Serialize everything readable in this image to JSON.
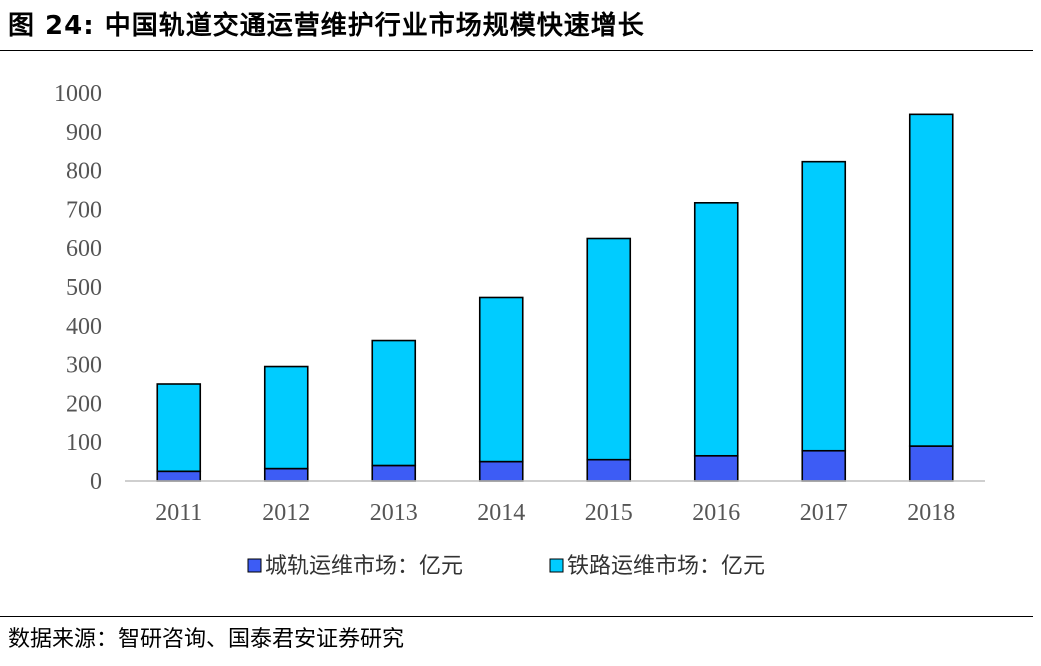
{
  "figure": {
    "label": "图 24:",
    "title": "中国轨道交通运营维护行业市场规模快速增长",
    "source": "数据来源：智研咨询、国泰君安证券研究"
  },
  "colors": {
    "series1": "#3d5cf5",
    "series2": "#00ccff",
    "bar_stroke": "#000000",
    "axis": "#bfbfbf"
  },
  "chart_data": {
    "type": "bar",
    "stacked": true,
    "categories": [
      "2011",
      "2012",
      "2013",
      "2014",
      "2015",
      "2016",
      "2017",
      "2018"
    ],
    "series": [
      {
        "name": "城轨运维市场：亿元",
        "values": [
          25,
          32,
          40,
          50,
          55,
          65,
          78,
          90
        ]
      },
      {
        "name": "铁路运维市场：亿元",
        "values": [
          225,
          263,
          322,
          423,
          570,
          652,
          745,
          855
        ]
      }
    ],
    "ylim": [
      0,
      1000
    ],
    "yticks": [
      "0",
      "100",
      "200",
      "300",
      "400",
      "500",
      "600",
      "700",
      "800",
      "900",
      "1000"
    ],
    "grid": false,
    "legend_position": "bottom"
  }
}
